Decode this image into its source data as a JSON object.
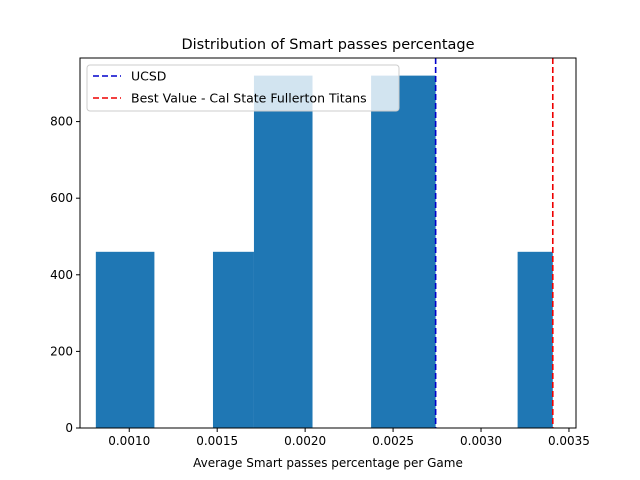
{
  "chart_data": {
    "type": "bar",
    "title": "Distribution of Smart passes percentage",
    "xlabel": "Average Smart passes percentage per Game",
    "ylabel": "",
    "xlim": [
      0.00072,
      0.00354
    ],
    "ylim": [
      0,
      966
    ],
    "xticks": [
      0.001,
      0.0015,
      0.002,
      0.0025,
      0.003,
      0.0035
    ],
    "xtick_labels": [
      "0.0010",
      "0.0015",
      "0.0020",
      "0.0025",
      "0.0030",
      "0.0035"
    ],
    "yticks": [
      0,
      200,
      400,
      600,
      800
    ],
    "ytick_labels": [
      "0",
      "200",
      "400",
      "600",
      "800"
    ],
    "bar_color": "#1f77b4",
    "bins": [
      {
        "start": 0.00081,
        "end": 0.001143,
        "count": 460
      },
      {
        "start": 0.001143,
        "end": 0.001476,
        "count": 0
      },
      {
        "start": 0.001476,
        "end": 0.001709,
        "count": 460
      },
      {
        "start": 0.001709,
        "end": 0.002042,
        "count": 920
      },
      {
        "start": 0.002042,
        "end": 0.002375,
        "count": 0
      },
      {
        "start": 0.002375,
        "end": 0.002742,
        "count": 920
      },
      {
        "start": 0.002742,
        "end": 0.003208,
        "count": 0
      },
      {
        "start": 0.003208,
        "end": 0.003408,
        "count": 460
      }
    ],
    "vlines": [
      {
        "label": "UCSD",
        "x": 0.002742,
        "color": "#0000cc",
        "style": "dashed"
      },
      {
        "label": "Best Value - Cal State Fullerton Titans",
        "x": 0.003408,
        "color": "#ee0000",
        "style": "dashed"
      }
    ],
    "legend_position": "top-left",
    "grid": false
  }
}
